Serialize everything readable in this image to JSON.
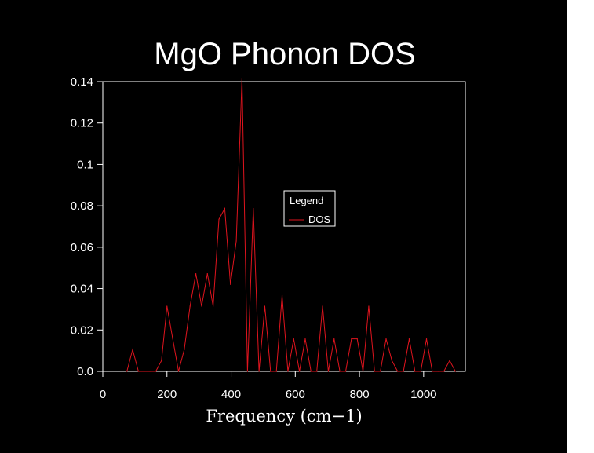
{
  "chart_data": {
    "type": "line",
    "title": "MgO Phonon DOS",
    "xlabel": "Frequency (cm−1)",
    "ylabel": "",
    "xlim": [
      0,
      1130
    ],
    "ylim": [
      0,
      0.14
    ],
    "xticks": [
      0,
      200,
      400,
      600,
      800,
      1000
    ],
    "xtick_labels": [
      "0",
      "200",
      "400",
      "600",
      "800",
      "1000"
    ],
    "yticks": [
      0,
      0.02,
      0.04,
      0.06,
      0.08,
      0.1,
      0.12,
      0.14
    ],
    "ytick_labels": [
      "0.0",
      "0.02",
      "0.04",
      "0.06",
      "0.08",
      "0.1",
      "0.12",
      "0.14"
    ],
    "grid": false,
    "legend": {
      "title": "Legend",
      "placement": "center-right"
    },
    "colors": {
      "background": "#000000",
      "axes": "#ffffff",
      "series": "#e0141e"
    },
    "series": [
      {
        "name": "DOS",
        "x": [
          75,
          93,
          111,
          129,
          147,
          165,
          183,
          200,
          218,
          236,
          254,
          272,
          290,
          308,
          326,
          344,
          362,
          380,
          398,
          416,
          434,
          451,
          469,
          487,
          505,
          523,
          541,
          559,
          577,
          595,
          613,
          631,
          649,
          667,
          685,
          703,
          721,
          739,
          757,
          775,
          793,
          811,
          829,
          847,
          865,
          883,
          901,
          919,
          937,
          955,
          973,
          991,
          1009,
          1027,
          1045,
          1063,
          1081,
          1099
        ],
        "values": [
          0,
          0.0105,
          0,
          0,
          0,
          0,
          0.0052,
          0.0315,
          0.0157,
          0,
          0.0105,
          0.0315,
          0.0472,
          0.0315,
          0.0472,
          0.0315,
          0.0735,
          0.0787,
          0.042,
          0.063,
          0.1417,
          0,
          0.0787,
          0,
          0.0315,
          0,
          0,
          0.0367,
          0,
          0.0157,
          0,
          0.0157,
          0,
          0,
          0.0315,
          0,
          0.0157,
          0,
          0,
          0.0157,
          0.0157,
          0,
          0.0315,
          0,
          0,
          0.0157,
          0.0052,
          0,
          0,
          0.0157,
          0,
          0,
          0.0157,
          0,
          0,
          0,
          0.0052,
          0
        ]
      }
    ]
  }
}
